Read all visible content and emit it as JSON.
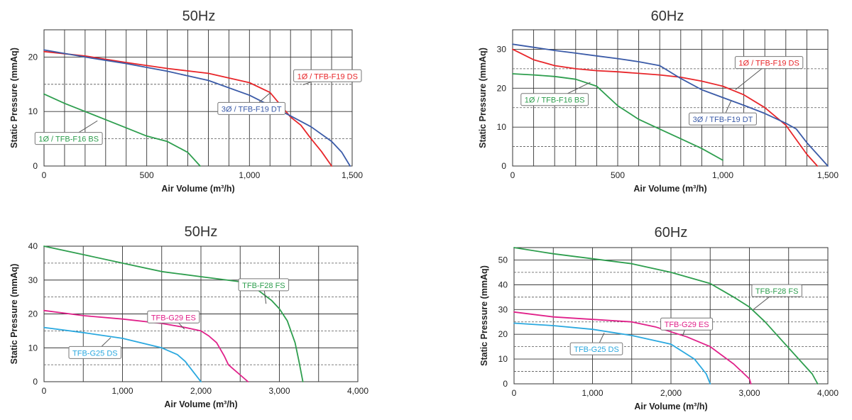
{
  "chart_data": [
    {
      "type": "line",
      "title": "50Hz",
      "xlabel": "Air Volume (m³/h)",
      "ylabel": "Static Pressure (mmAq)",
      "xlim": [
        0,
        1500
      ],
      "ylim": [
        0,
        25
      ],
      "x_grid_step": 100,
      "y_grid_dashed": [
        5,
        15,
        25
      ],
      "xticks": [
        0,
        500,
        1000,
        1500
      ],
      "xtick_labels": [
        "0",
        "500",
        "1,000",
        "1,500"
      ],
      "yticks": [
        0,
        10,
        20
      ],
      "ytick_labels": [
        "0",
        "10",
        "20"
      ],
      "series": [
        {
          "name": "1Ø / TFB-F19 DS",
          "color": "#e8262a",
          "points": [
            [
              0,
              21
            ],
            [
              200,
              20.2
            ],
            [
              400,
              19
            ],
            [
              600,
              17.9
            ],
            [
              800,
              17
            ],
            [
              1000,
              15.3
            ],
            [
              1100,
              13.5
            ],
            [
              1200,
              9
            ],
            [
              1250,
              7.5
            ],
            [
              1300,
              5
            ],
            [
              1350,
              2.7
            ],
            [
              1400,
              0
            ]
          ],
          "label_at": [
            1380,
            16.5
          ],
          "pointer_at": [
            1260,
            14.9
          ]
        },
        {
          "name": "3Ø / TFB-F19 DT",
          "color": "#3b5ba8",
          "points": [
            [
              0,
              21.3
            ],
            [
              200,
              20
            ],
            [
              400,
              18.8
            ],
            [
              600,
              17.4
            ],
            [
              800,
              15.7
            ],
            [
              1000,
              13
            ],
            [
              1200,
              9.2
            ],
            [
              1300,
              7.2
            ],
            [
              1400,
              4.5
            ],
            [
              1450,
              2.5
            ],
            [
              1490,
              0
            ]
          ],
          "label_at": [
            1010,
            10.5
          ],
          "pointer_at": [
            1100,
            13.4
          ]
        },
        {
          "name": "1Ø / TFB-F16 BS",
          "color": "#2e9e4e",
          "points": [
            [
              0,
              13.2
            ],
            [
              100,
              11.5
            ],
            [
              200,
              10
            ],
            [
              300,
              8.5
            ],
            [
              400,
              7
            ],
            [
              500,
              5.5
            ],
            [
              600,
              4.5
            ],
            [
              700,
              2.5
            ],
            [
              760,
              0
            ]
          ],
          "label_at": [
            120,
            5
          ],
          "pointer_at": [
            260,
            8.3
          ]
        }
      ]
    },
    {
      "type": "line",
      "title": "60Hz",
      "xlabel": "Air Volume (m³/h)",
      "ylabel": "Static Pressure (mmAq)",
      "xlim": [
        0,
        1500
      ],
      "ylim": [
        0,
        35
      ],
      "x_grid_step": 100,
      "y_grid_dashed": [
        5,
        15,
        25,
        35
      ],
      "xticks": [
        0,
        500,
        1000,
        1500
      ],
      "xtick_labels": [
        "0",
        "500",
        "1,000",
        "1,500"
      ],
      "yticks": [
        0,
        10,
        20,
        30
      ],
      "ytick_labels": [
        "0",
        "10",
        "20",
        "30"
      ],
      "series": [
        {
          "name": "1Ø / TFB-F19 DS",
          "color": "#e8262a",
          "points": [
            [
              0,
              30
            ],
            [
              100,
              27.3
            ],
            [
              200,
              25.8
            ],
            [
              300,
              25
            ],
            [
              400,
              24.5
            ],
            [
              500,
              24.2
            ],
            [
              600,
              23.8
            ],
            [
              700,
              23.4
            ],
            [
              800,
              22.8
            ],
            [
              900,
              21.8
            ],
            [
              1000,
              20.5
            ],
            [
              1100,
              18.3
            ],
            [
              1200,
              15
            ],
            [
              1300,
              10.5
            ],
            [
              1400,
              3
            ],
            [
              1450,
              0
            ]
          ],
          "label_at": [
            1220,
            26.5
          ],
          "pointer_at": [
            1060,
            19.6
          ]
        },
        {
          "name": "3Ø / TFB-F19 DT",
          "color": "#3b5ba8",
          "points": [
            [
              0,
              31.3
            ],
            [
              100,
              30.5
            ],
            [
              200,
              29.7
            ],
            [
              300,
              29
            ],
            [
              400,
              28.3
            ],
            [
              500,
              27.6
            ],
            [
              600,
              26.8
            ],
            [
              700,
              25.8
            ],
            [
              800,
              22.5
            ],
            [
              900,
              19.6
            ],
            [
              1000,
              17.6
            ],
            [
              1100,
              15.6
            ],
            [
              1200,
              13.5
            ],
            [
              1300,
              11
            ],
            [
              1350,
              9.5
            ],
            [
              1400,
              6
            ],
            [
              1450,
              3
            ],
            [
              1500,
              0
            ]
          ],
          "label_at": [
            1000,
            12
          ],
          "pointer_at": [
            1040,
            16.8
          ]
        },
        {
          "name": "1Ø / TFB-F16 BS",
          "color": "#2e9e4e",
          "points": [
            [
              0,
              23.7
            ],
            [
              100,
              23.4
            ],
            [
              200,
              23
            ],
            [
              300,
              22.3
            ],
            [
              400,
              20.5
            ],
            [
              500,
              15.5
            ],
            [
              600,
              12
            ],
            [
              700,
              9.5
            ],
            [
              800,
              7
            ],
            [
              900,
              4.5
            ],
            [
              1000,
              1.5
            ]
          ],
          "label_at": [
            200,
            17
          ],
          "pointer_at": [
            370,
            21.5
          ]
        }
      ]
    },
    {
      "type": "line",
      "title": "50Hz",
      "xlabel": "Air Volume (m³/h)",
      "ylabel": "Static Pressure (mmAq)",
      "xlim": [
        0,
        4000
      ],
      "ylim": [
        0,
        40
      ],
      "x_grid_step": 500,
      "y_grid_dashed": [
        5,
        15,
        25,
        35
      ],
      "xticks": [
        0,
        1000,
        2000,
        3000,
        4000
      ],
      "xtick_labels": [
        "0",
        "1,000",
        "2,000",
        "3,000",
        "4,000"
      ],
      "yticks": [
        0,
        10,
        20,
        30,
        40
      ],
      "ytick_labels": [
        "0",
        "10",
        "20",
        "30",
        "40"
      ],
      "series": [
        {
          "name": "TFB-F28 FS",
          "color": "#2e9e4e",
          "points": [
            [
              0,
              40
            ],
            [
              500,
              37.5
            ],
            [
              1000,
              35
            ],
            [
              1500,
              32.5
            ],
            [
              2000,
              31
            ],
            [
              2500,
              29.5
            ],
            [
              2700,
              27.5
            ],
            [
              2900,
              24
            ],
            [
              3000,
              21.5
            ],
            [
              3100,
              18
            ],
            [
              3200,
              11.5
            ],
            [
              3250,
              6
            ],
            [
              3300,
              0
            ]
          ],
          "label_at": [
            2800,
            28.5
          ],
          "pointer_at": [
            2830,
            23
          ]
        },
        {
          "name": "TFB-G29 ES",
          "color": "#e0218a",
          "points": [
            [
              0,
              21
            ],
            [
              500,
              19.5
            ],
            [
              1000,
              18.5
            ],
            [
              1500,
              17.2
            ],
            [
              1800,
              16
            ],
            [
              2000,
              15
            ],
            [
              2100,
              13.5
            ],
            [
              2200,
              11.5
            ],
            [
              2300,
              7.5
            ],
            [
              2350,
              5
            ],
            [
              2400,
              4
            ],
            [
              2500,
              2
            ],
            [
              2600,
              0
            ]
          ],
          "label_at": [
            1650,
            19
          ],
          "pointer_at": [
            1790,
            15.5
          ]
        },
        {
          "name": "TFB-G25 DS",
          "color": "#2aa8df",
          "points": [
            [
              0,
              16
            ],
            [
              500,
              14.5
            ],
            [
              1000,
              12.8
            ],
            [
              1500,
              10
            ],
            [
              1700,
              8
            ],
            [
              1800,
              6
            ],
            [
              1900,
              3
            ],
            [
              2000,
              0
            ]
          ],
          "label_at": [
            650,
            8.5
          ],
          "pointer_at": [
            850,
            13
          ]
        }
      ]
    },
    {
      "type": "line",
      "title": "60Hz",
      "xlabel": "Air Volume (m³/h)",
      "ylabel": "Static Pressure (mmAq)",
      "xlim": [
        0,
        4000
      ],
      "ylim": [
        0,
        55
      ],
      "x_grid_step": 500,
      "y_grid_dashed": [
        5,
        15,
        25,
        35,
        45,
        55
      ],
      "xticks": [
        0,
        1000,
        2000,
        3000,
        4000
      ],
      "xtick_labels": [
        "0",
        "1,000",
        "2,000",
        "3,000",
        "4,000"
      ],
      "yticks": [
        0,
        10,
        20,
        30,
        40,
        50
      ],
      "ytick_labels": [
        "0",
        "10",
        "20",
        "30",
        "40",
        "50"
      ],
      "series": [
        {
          "name": "TFB-F28 FS",
          "color": "#2e9e4e",
          "points": [
            [
              0,
              55
            ],
            [
              500,
              52.5
            ],
            [
              1000,
              50.5
            ],
            [
              1500,
              48.5
            ],
            [
              2000,
              45
            ],
            [
              2500,
              40.5
            ],
            [
              2800,
              35
            ],
            [
              3000,
              31
            ],
            [
              3200,
              25
            ],
            [
              3400,
              18
            ],
            [
              3600,
              11
            ],
            [
              3800,
              4
            ],
            [
              3870,
              0
            ]
          ],
          "label_at": [
            3350,
            37.5
          ],
          "pointer_at": [
            3050,
            30
          ]
        },
        {
          "name": "TFB-G29 ES",
          "color": "#e0218a",
          "points": [
            [
              0,
              29
            ],
            [
              500,
              27
            ],
            [
              1000,
              26
            ],
            [
              1500,
              25
            ],
            [
              1800,
              23
            ],
            [
              2200,
              19
            ],
            [
              2500,
              15
            ],
            [
              2800,
              8
            ],
            [
              3000,
              2
            ],
            [
              3020,
              0
            ]
          ],
          "label_at": [
            2200,
            24
          ],
          "pointer_at": [
            2150,
            19.4
          ]
        },
        {
          "name": "TFB-G25 DS",
          "color": "#2aa8df",
          "points": [
            [
              0,
              24.5
            ],
            [
              500,
              23.5
            ],
            [
              1000,
              22
            ],
            [
              1500,
              19.5
            ],
            [
              2000,
              16
            ],
            [
              2300,
              10
            ],
            [
              2450,
              4
            ],
            [
              2500,
              0
            ]
          ],
          "label_at": [
            1050,
            14
          ],
          "pointer_at": [
            1150,
            20.6
          ]
        }
      ]
    }
  ]
}
